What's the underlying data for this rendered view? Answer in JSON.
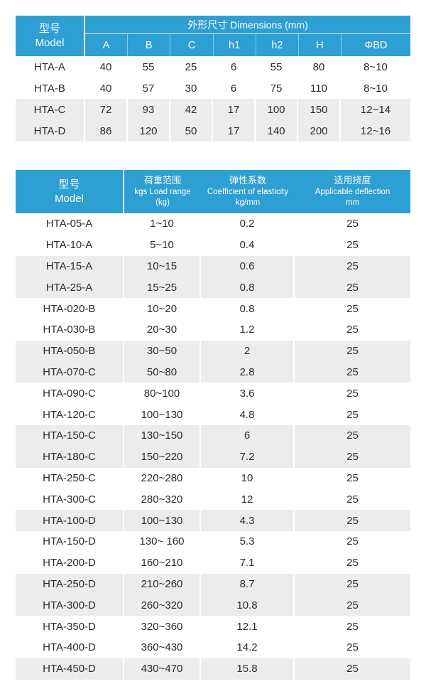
{
  "colors": {
    "header_blue": "#2d9fd3",
    "stripe_gray": "#ececec",
    "text": "#2b2b2b"
  },
  "table1": {
    "model_header_zh": "型号",
    "model_header_en": "Model",
    "dims_title": "外形尺寸 Dimensions (mm)",
    "columns": [
      "A",
      "B",
      "C",
      "h1",
      "h2",
      "H",
      "ΦBD"
    ],
    "rows": [
      {
        "model": "HTA-A",
        "values": [
          "40",
          "55",
          "25",
          "6",
          "55",
          "80",
          "8~10"
        ],
        "shaded": false
      },
      {
        "model": "HTA-B",
        "values": [
          "40",
          "57",
          "30",
          "6",
          "75",
          "110",
          "8~10"
        ],
        "shaded": false
      },
      {
        "model": "HTA-C",
        "values": [
          "72",
          "93",
          "42",
          "17",
          "100",
          "150",
          "12~14"
        ],
        "shaded": true
      },
      {
        "model": "HTA-D",
        "values": [
          "86",
          "120",
          "50",
          "17",
          "140",
          "200",
          "12~16"
        ],
        "shaded": true
      }
    ]
  },
  "table2": {
    "headers": [
      {
        "lines": [
          "型号",
          "Model"
        ]
      },
      {
        "lines": [
          "荷重范围",
          "kgs Load range",
          "(kg)"
        ]
      },
      {
        "lines": [
          "弹性系数",
          "Coefficient of elasticity",
          "kg/mm"
        ]
      },
      {
        "lines": [
          "适用挠度",
          "Applicable deflection",
          "mm"
        ]
      }
    ],
    "rows": [
      {
        "model": "HTA-05-A",
        "load_range": "1~10",
        "coefficient": "0.2",
        "deflection": "25",
        "shaded": false
      },
      {
        "model": "HTA-10-A",
        "load_range": "5~10",
        "coefficient": "0.4",
        "deflection": "25",
        "shaded": false
      },
      {
        "model": "HTA-15-A",
        "load_range": "10~15",
        "coefficient": "0.6",
        "deflection": "25",
        "shaded": true
      },
      {
        "model": "HTA-25-A",
        "load_range": "15~25",
        "coefficient": "0.8",
        "deflection": "25",
        "shaded": true
      },
      {
        "model": "HTA-020-B",
        "load_range": "10~20",
        "coefficient": "0.8",
        "deflection": "25",
        "shaded": false
      },
      {
        "model": "HTA-030-B",
        "load_range": "20~30",
        "coefficient": "1.2",
        "deflection": "25",
        "shaded": false
      },
      {
        "model": "HTA-050-B",
        "load_range": "30~50",
        "coefficient": "2",
        "deflection": "25",
        "shaded": true
      },
      {
        "model": "HTA-070-C",
        "load_range": "50~80",
        "coefficient": "2.8",
        "deflection": "25",
        "shaded": true
      },
      {
        "model": "HTA-090-C",
        "load_range": "80~100",
        "coefficient": "3.6",
        "deflection": "25",
        "shaded": false
      },
      {
        "model": "HTA-120-C",
        "load_range": "100~130",
        "coefficient": "4.8",
        "deflection": "25",
        "shaded": false
      },
      {
        "model": "HTA-150-C",
        "load_range": "130~150",
        "coefficient": "6",
        "deflection": "25",
        "shaded": true
      },
      {
        "model": "HTA-180-C",
        "load_range": "150~220",
        "coefficient": "7.2",
        "deflection": "25",
        "shaded": true
      },
      {
        "model": "HTA-250-C",
        "load_range": "220~280",
        "coefficient": "10",
        "deflection": "25",
        "shaded": false
      },
      {
        "model": "HTA-300-C",
        "load_range": "280~320",
        "coefficient": "12",
        "deflection": "25",
        "shaded": false
      },
      {
        "model": "HTA-100-D",
        "load_range": "100~130",
        "coefficient": "4.3",
        "deflection": "25",
        "shaded": true
      },
      {
        "model": "HTA-150-D",
        "load_range": "130~ 160",
        "coefficient": "5.3",
        "deflection": "25",
        "shaded": false
      },
      {
        "model": "HTA-200-D",
        "load_range": "160~210",
        "coefficient": "7.1",
        "deflection": "25",
        "shaded": false
      },
      {
        "model": "HTA-250-D",
        "load_range": "210~260",
        "coefficient": "8.7",
        "deflection": "25",
        "shaded": true
      },
      {
        "model": "HTA-300-D",
        "load_range": "260~320",
        "coefficient": "10.8",
        "deflection": "25",
        "shaded": true
      },
      {
        "model": "HTA-350-D",
        "load_range": "320~360",
        "coefficient": "12.1",
        "deflection": "25",
        "shaded": false
      },
      {
        "model": "HTA-400-D",
        "load_range": "360~430",
        "coefficient": "14.2",
        "deflection": "25",
        "shaded": false
      },
      {
        "model": "HTA-450-D",
        "load_range": "430~470",
        "coefficient": "15.8",
        "deflection": "25",
        "shaded": true
      }
    ]
  }
}
